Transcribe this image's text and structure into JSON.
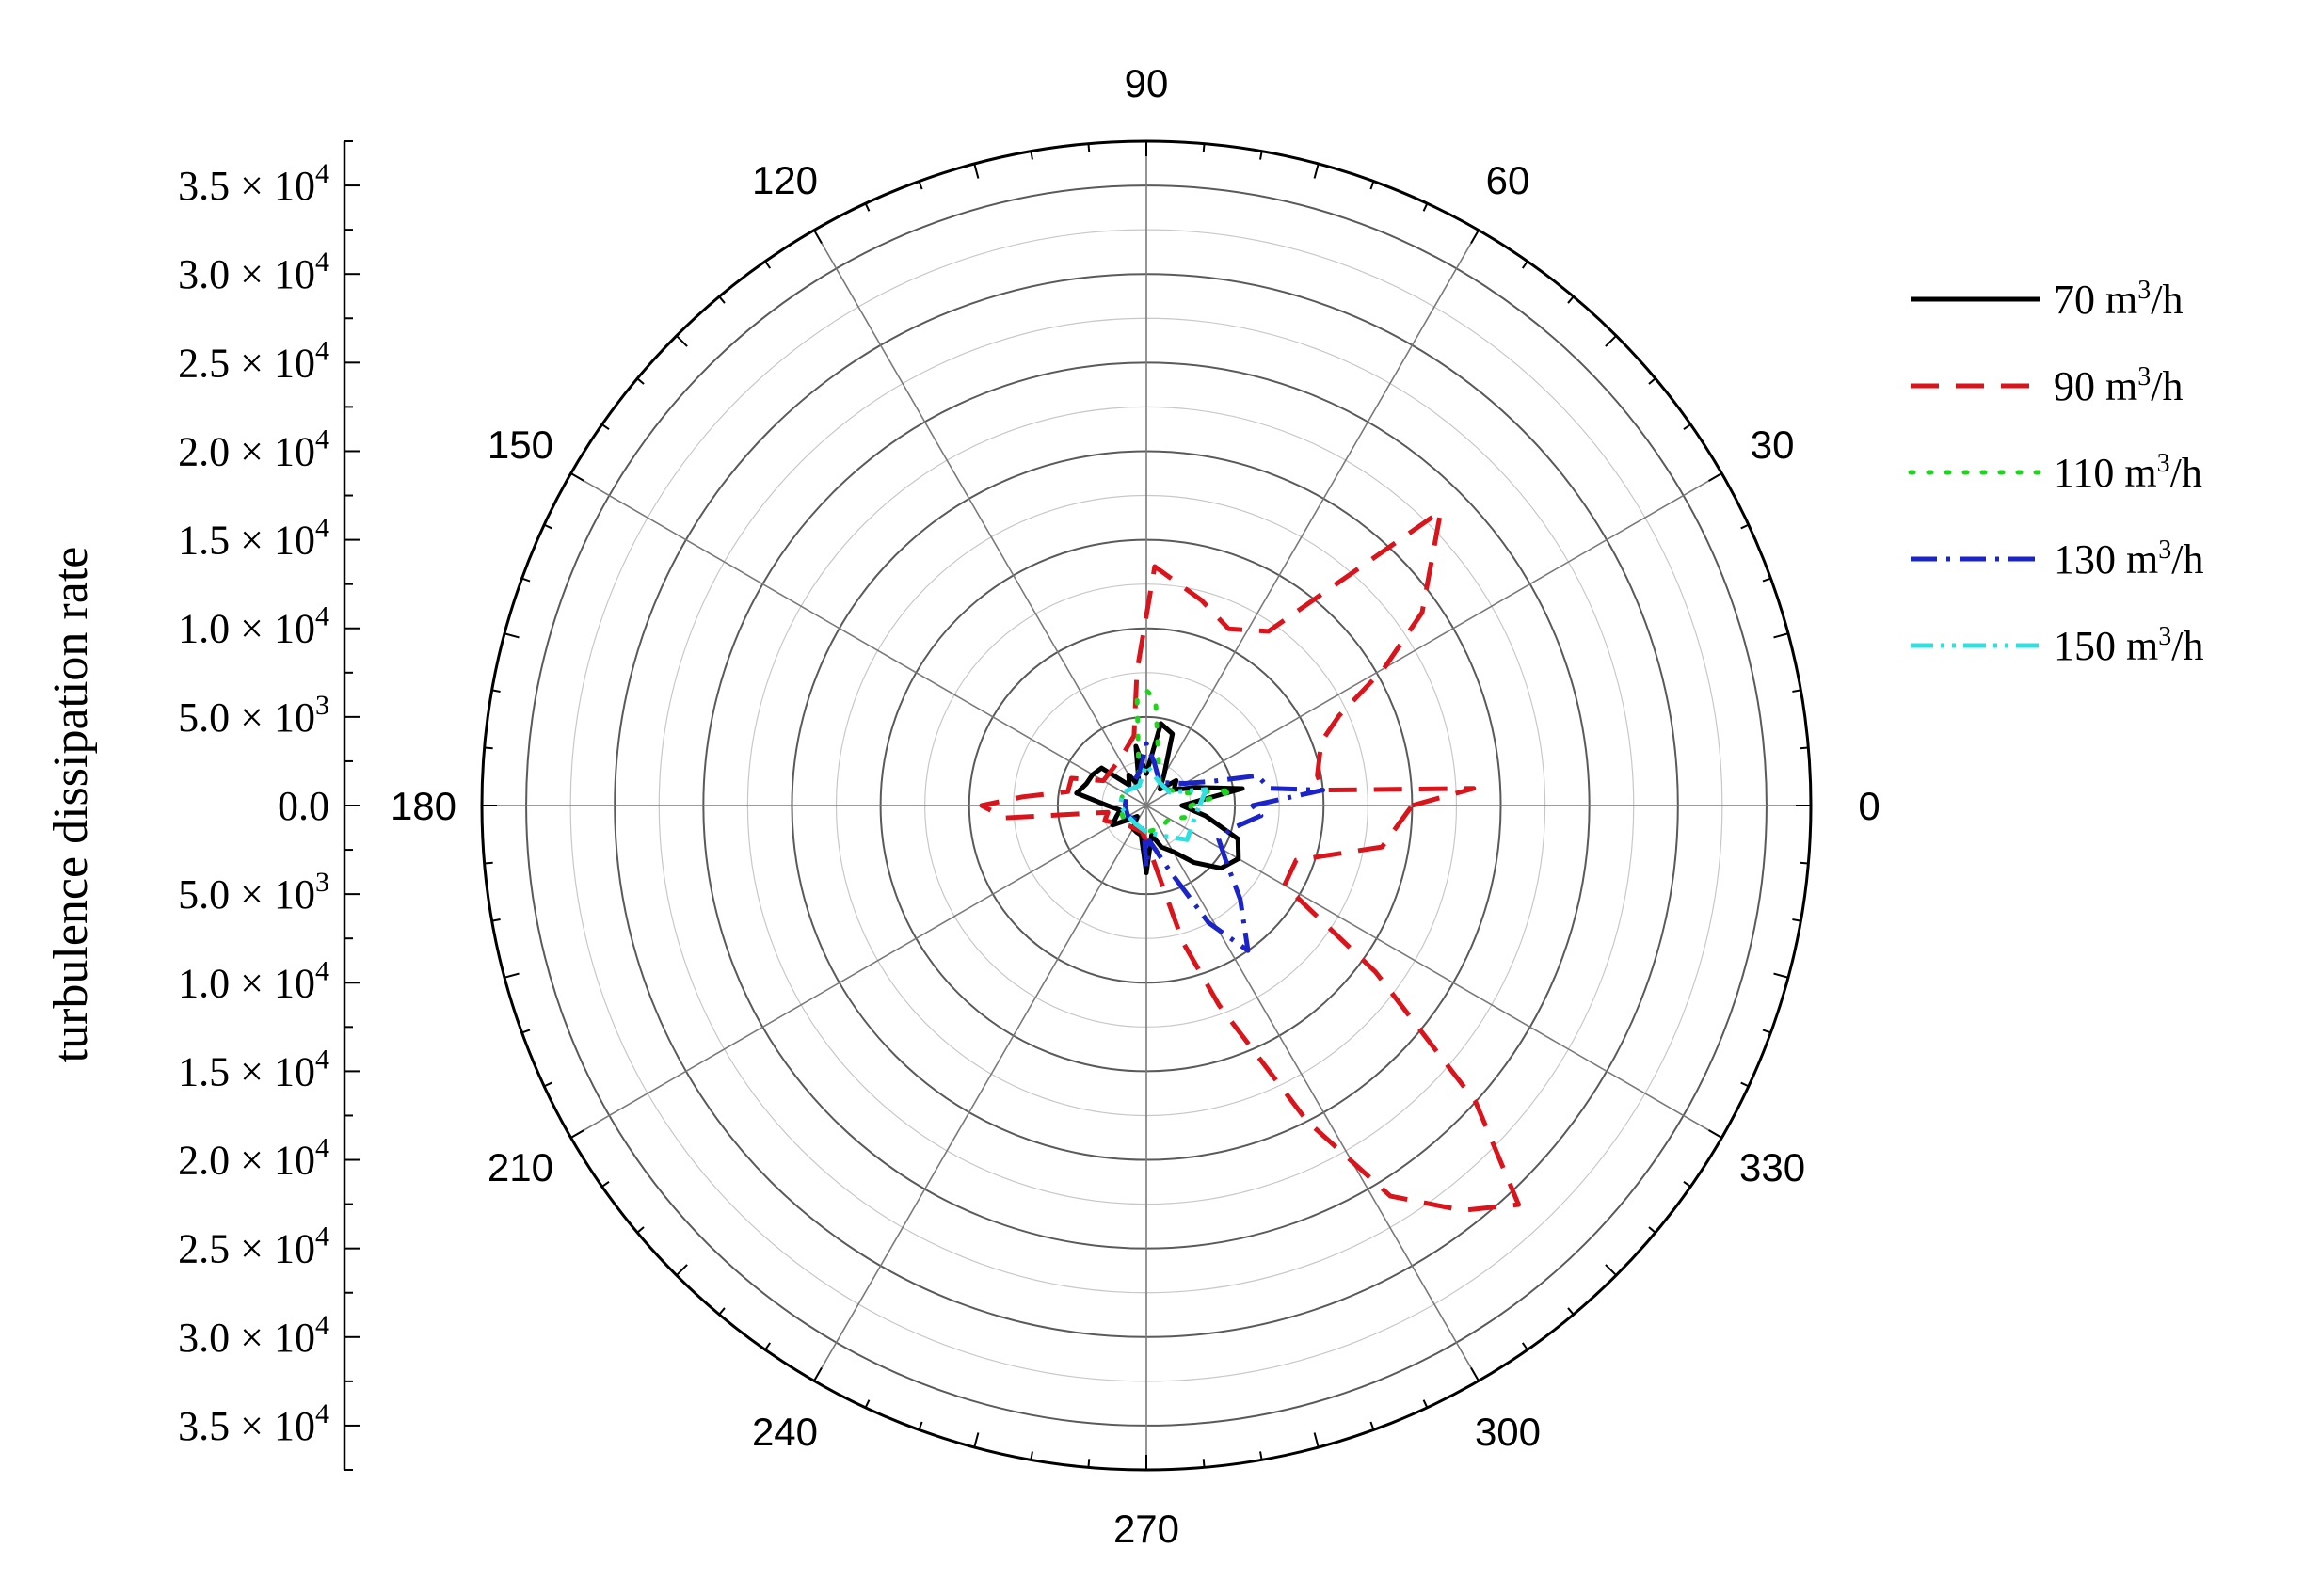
{
  "chart_data": {
    "type": "polar-line",
    "ylabel": "turbulence dissipation rate",
    "r_range": [
      0,
      37500
    ],
    "angular_ticks": [
      "0",
      "30",
      "60",
      "90",
      "120",
      "150",
      "180",
      "210",
      "240",
      "270",
      "300",
      "330"
    ],
    "radial_tick_labels": [
      {
        "base": "3.5 × 10",
        "exp": "4"
      },
      {
        "base": "3.0 × 10",
        "exp": "4"
      },
      {
        "base": "2.5 × 10",
        "exp": "4"
      },
      {
        "base": "2.0 × 10",
        "exp": "4"
      },
      {
        "base": "1.5 × 10",
        "exp": "4"
      },
      {
        "base": "1.0 × 10",
        "exp": "4"
      },
      {
        "base": "5.0 × 10",
        "exp": "3"
      },
      {
        "base": "0.0",
        "exp": ""
      },
      {
        "base": "5.0 × 10",
        "exp": "3"
      },
      {
        "base": "1.0 × 10",
        "exp": "4"
      },
      {
        "base": "1.5 × 10",
        "exp": "4"
      },
      {
        "base": "2.0 × 10",
        "exp": "4"
      },
      {
        "base": "2.5 × 10",
        "exp": "4"
      },
      {
        "base": "3.0 × 10",
        "exp": "4"
      },
      {
        "base": "3.5 × 10",
        "exp": "4"
      }
    ],
    "grid": true,
    "legend_position": "right",
    "series": [
      {
        "name": "70 m³/h",
        "legend_base": "70 m",
        "legend_exp": "3",
        "legend_tail": "/h",
        "color": "#000000",
        "dash": "",
        "points": [
          [
            0,
            2000
          ],
          [
            10,
            5500
          ],
          [
            20,
            3000
          ],
          [
            30,
            1800
          ],
          [
            40,
            2200
          ],
          [
            50,
            1200
          ],
          [
            60,
            2000
          ],
          [
            70,
            4300
          ],
          [
            80,
            4700
          ],
          [
            90,
            1800
          ],
          [
            100,
            3400
          ],
          [
            110,
            1200
          ],
          [
            120,
            2000
          ],
          [
            130,
            1500
          ],
          [
            140,
            3300
          ],
          [
            150,
            3500
          ],
          [
            160,
            3600
          ],
          [
            170,
            4000
          ],
          [
            180,
            2200
          ],
          [
            190,
            1500
          ],
          [
            200,
            1800
          ],
          [
            210,
            2200
          ],
          [
            220,
            1200
          ],
          [
            230,
            800
          ],
          [
            240,
            1500
          ],
          [
            250,
            1600
          ],
          [
            260,
            1700
          ],
          [
            270,
            3800
          ],
          [
            280,
            1700
          ],
          [
            290,
            2500
          ],
          [
            300,
            3000
          ],
          [
            310,
            4200
          ],
          [
            320,
            5500
          ],
          [
            330,
            6000
          ],
          [
            340,
            5500
          ],
          [
            350,
            3400
          ],
          [
            360,
            2000
          ]
        ]
      },
      {
        "name": "90 m³/h",
        "legend_base": "90 m",
        "legend_exp": "3",
        "legend_tail": "/h",
        "color": "#d9141b",
        "dash": "30,18",
        "points": [
          [
            0,
            15000
          ],
          [
            3,
            18500
          ],
          [
            5,
            10000
          ],
          [
            10,
            9800
          ],
          [
            20,
            10500
          ],
          [
            25,
            12000
          ],
          [
            30,
            15500
          ],
          [
            35,
            19000
          ],
          [
            45,
            23500
          ],
          [
            55,
            12000
          ],
          [
            65,
            11000
          ],
          [
            75,
            12000
          ],
          [
            88,
            13500
          ],
          [
            94,
            7600
          ],
          [
            100,
            4000
          ],
          [
            120,
            3000
          ],
          [
            150,
            2800
          ],
          [
            160,
            4500
          ],
          [
            170,
            4500
          ],
          [
            176,
            7000
          ],
          [
            180,
            9300
          ],
          [
            185,
            8000
          ],
          [
            190,
            2200
          ],
          [
            200,
            2500
          ],
          [
            230,
            1500
          ],
          [
            260,
            1500
          ],
          [
            270,
            2000
          ],
          [
            285,
            8000
          ],
          [
            290,
            12000
          ],
          [
            297,
            20000
          ],
          [
            302,
            26000
          ],
          [
            308,
            29000
          ],
          [
            313,
            30800
          ],
          [
            318,
            25000
          ],
          [
            324,
            16000
          ],
          [
            330,
            9000
          ],
          [
            340,
            9000
          ],
          [
            350,
            13500
          ],
          [
            360,
            15000
          ]
        ]
      },
      {
        "name": "110 m³/h",
        "legend_base": "110 m",
        "legend_exp": "3",
        "legend_tail": "/h",
        "color": "#1ed41e",
        "dash": "3,16",
        "points": [
          [
            0,
            2500
          ],
          [
            10,
            5000
          ],
          [
            20,
            2000
          ],
          [
            40,
            1500
          ],
          [
            60,
            1500
          ],
          [
            85,
            6000
          ],
          [
            90,
            6500
          ],
          [
            95,
            6000
          ],
          [
            110,
            1200
          ],
          [
            150,
            1500
          ],
          [
            180,
            1500
          ],
          [
            210,
            1500
          ],
          [
            240,
            1200
          ],
          [
            270,
            1500
          ],
          [
            300,
            1500
          ],
          [
            330,
            1500
          ],
          [
            345,
            2500
          ],
          [
            360,
            2500
          ]
        ]
      },
      {
        "name": "130 m³/h",
        "legend_base": "130 m",
        "legend_exp": "3",
        "legend_tail": "/h",
        "color": "#1a24c8",
        "dash": "28,10,4,10",
        "points": [
          [
            0,
            6000
          ],
          [
            5,
            10000
          ],
          [
            8,
            7000
          ],
          [
            15,
            6500
          ],
          [
            20,
            4000
          ],
          [
            30,
            2500
          ],
          [
            60,
            1500
          ],
          [
            80,
            2500
          ],
          [
            90,
            3500
          ],
          [
            100,
            2000
          ],
          [
            150,
            1300
          ],
          [
            180,
            1200
          ],
          [
            210,
            1200
          ],
          [
            240,
            1000
          ],
          [
            265,
            1500
          ],
          [
            270,
            3500
          ],
          [
            275,
            2000
          ],
          [
            290,
            4000
          ],
          [
            298,
            7500
          ],
          [
            305,
            10000
          ],
          [
            315,
            7500
          ],
          [
            325,
            5500
          ],
          [
            335,
            4500
          ],
          [
            345,
            5000
          ],
          [
            355,
            6500
          ],
          [
            360,
            6000
          ]
        ]
      },
      {
        "name": "150 m³/h",
        "legend_base": "150 m",
        "legend_exp": "3",
        "legend_tail": "/h",
        "color": "#2fe0e0",
        "dash": "24,8,4,8,4,8",
        "points": [
          [
            0,
            3000
          ],
          [
            15,
            3500
          ],
          [
            30,
            1500
          ],
          [
            60,
            1500
          ],
          [
            90,
            2300
          ],
          [
            110,
            1200
          ],
          [
            150,
            1500
          ],
          [
            180,
            1500
          ],
          [
            210,
            1200
          ],
          [
            240,
            1200
          ],
          [
            270,
            1500
          ],
          [
            300,
            2000
          ],
          [
            320,
            3000
          ],
          [
            340,
            2800
          ],
          [
            360,
            3000
          ]
        ]
      }
    ]
  }
}
